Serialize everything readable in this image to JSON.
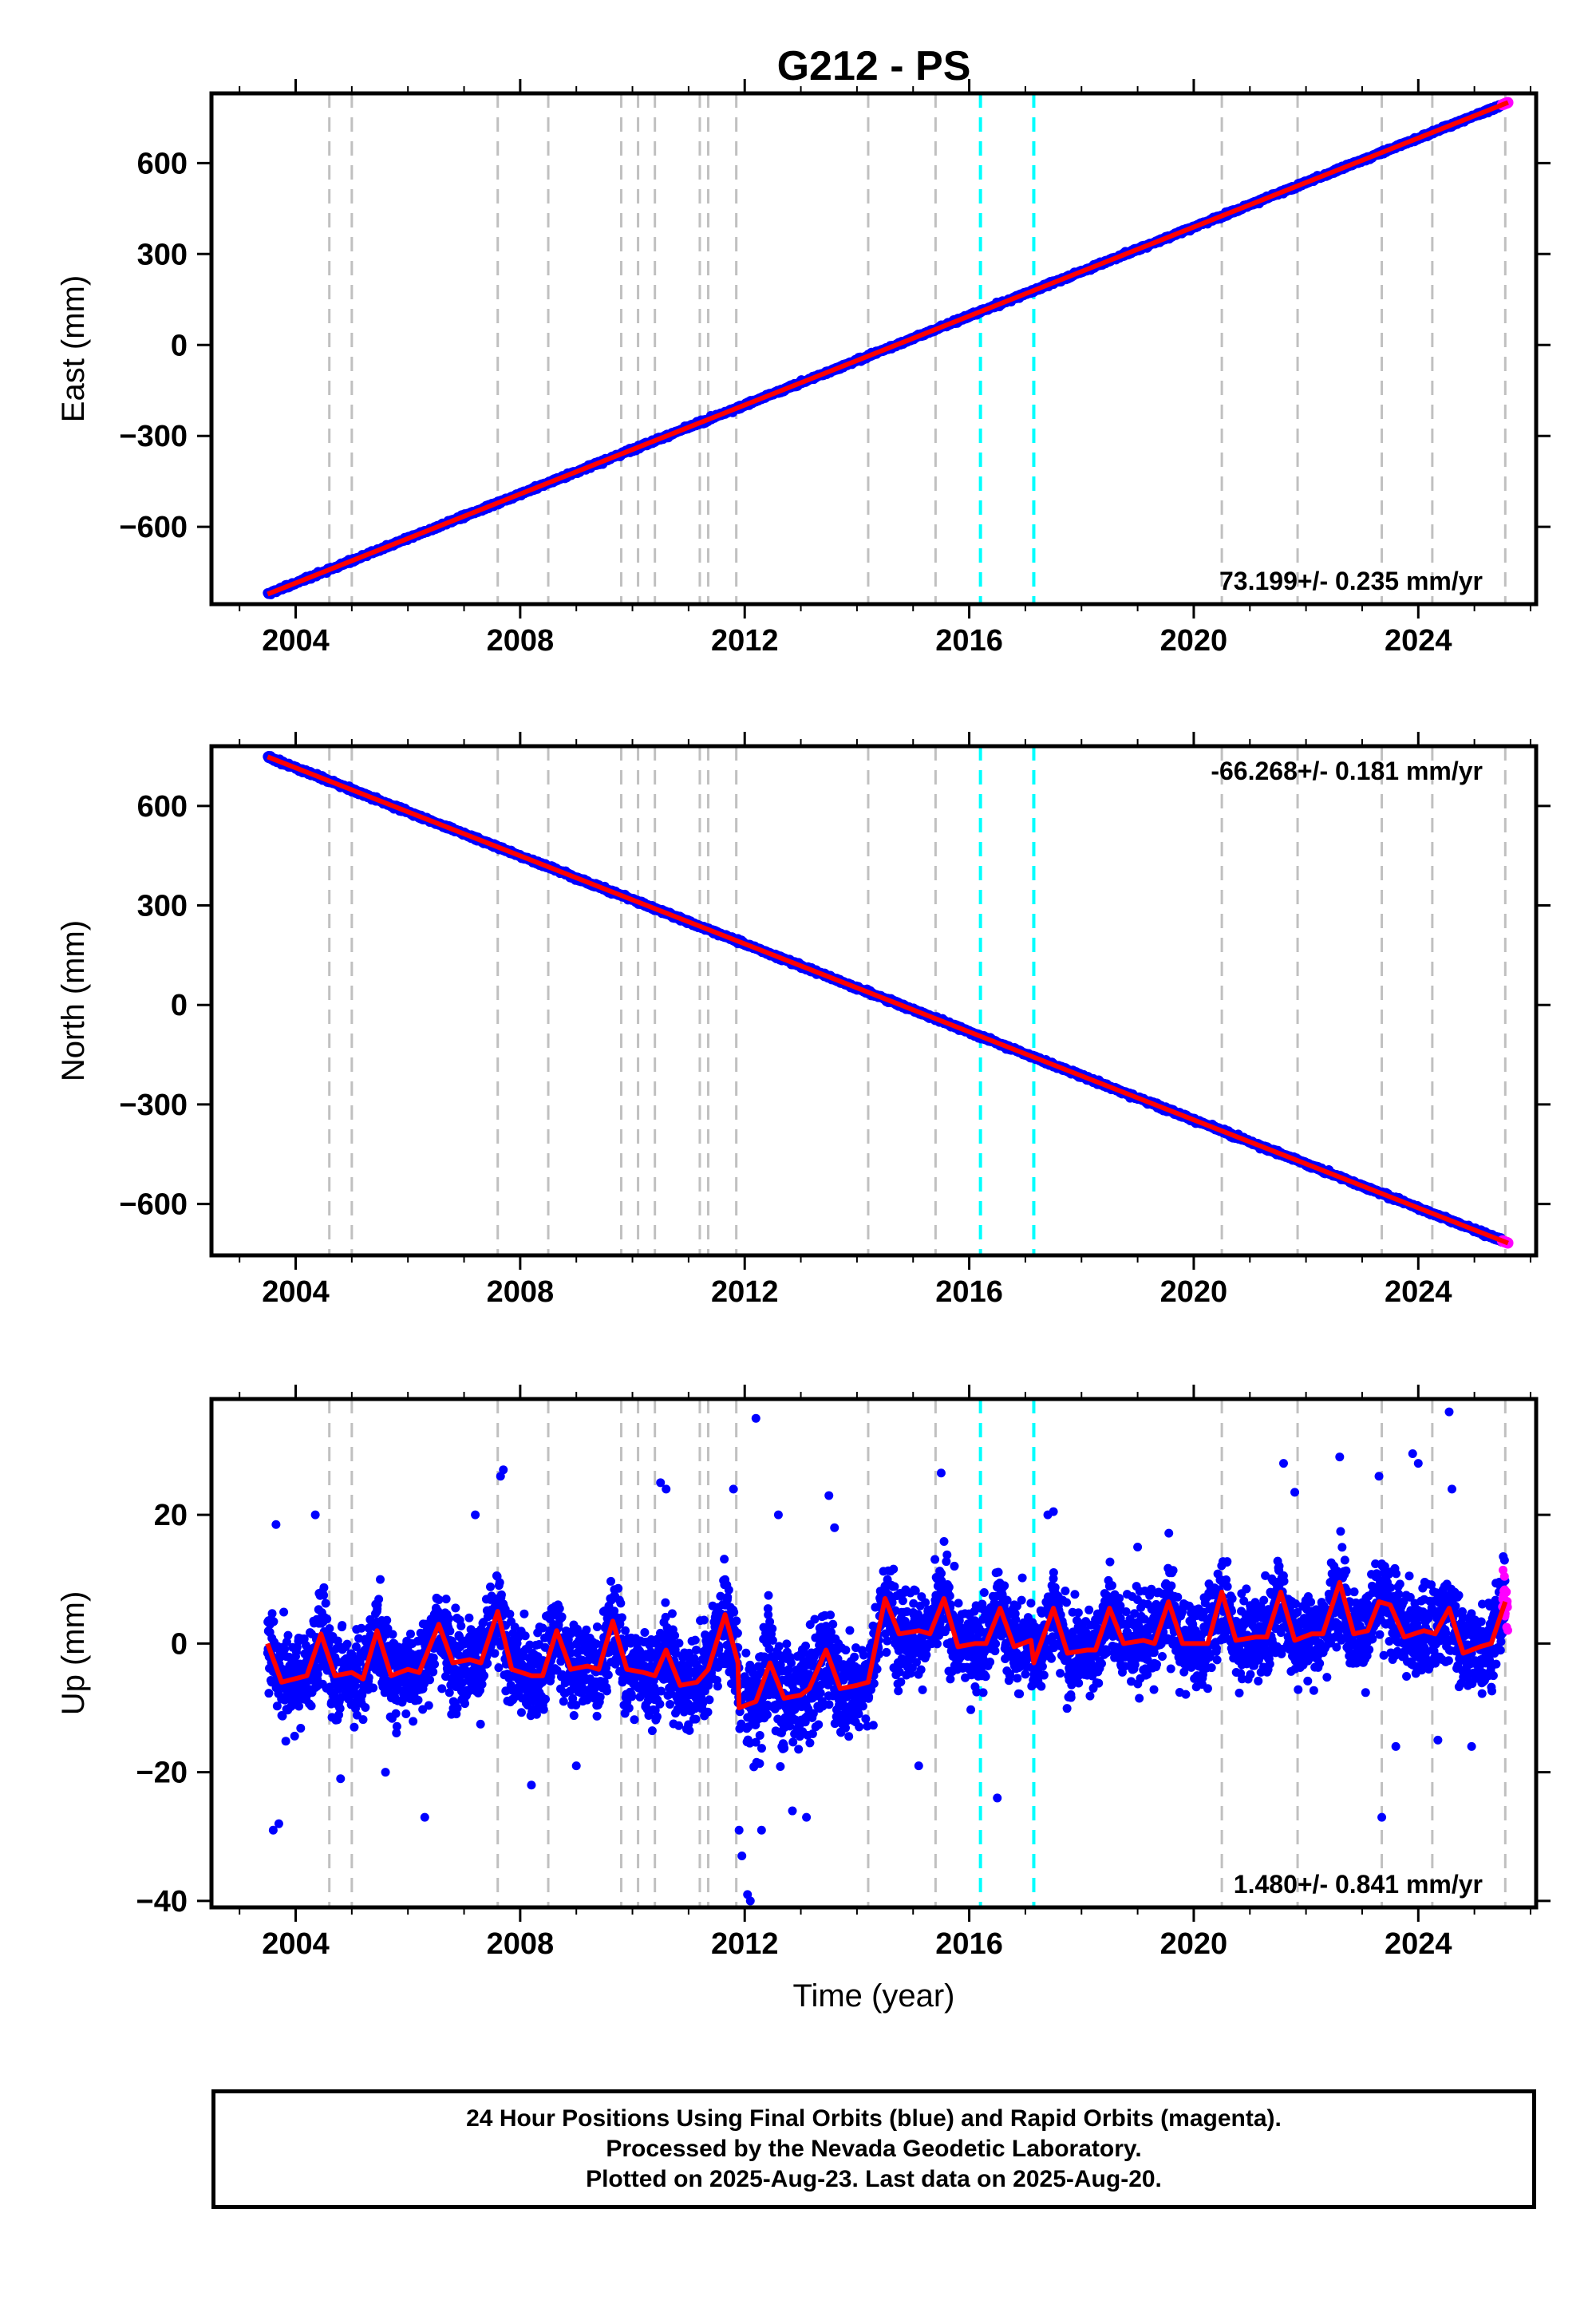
{
  "title": "G212 - PS",
  "colors": {
    "final_points": "#0000ff",
    "rapid_points": "#ff00ff",
    "model_line": "#ff0000",
    "event_gray": "#c0c0c0",
    "event_cyan": "#00ffff"
  },
  "x_axis": {
    "label": "Time (year)",
    "range": [
      2002.5,
      2026.1
    ],
    "ticks": [
      2004,
      2008,
      2012,
      2016,
      2020,
      2024
    ]
  },
  "event_lines": {
    "gray": [
      2004.6,
      2005.0,
      2007.6,
      2008.5,
      2009.8,
      2010.1,
      2010.4,
      2011.2,
      2011.35,
      2011.85,
      2014.2,
      2015.4,
      2020.5,
      2021.85,
      2023.35,
      2024.25,
      2025.55
    ],
    "cyan": [
      2016.2,
      2017.15
    ]
  },
  "chart_data": [
    {
      "type": "scatter",
      "panel": "east",
      "ylabel": "East (mm)",
      "ylim": [
        -855,
        830
      ],
      "yticks": [
        -600,
        -300,
        0,
        300,
        600
      ],
      "rate_label": "73.199+/- 0.235 mm/yr",
      "rate_position": "bottom-right",
      "start_year": 2003.5,
      "end_year": 2025.6,
      "start_value": -822,
      "end_value": 800,
      "noise_mm": 4,
      "seasonal_amplitude_mm": 0,
      "series": [
        {
          "values": [
            [
              2003.5,
              -822
            ],
            [
              2004.5,
              -749
            ],
            [
              2006,
              -639
            ],
            [
              2008,
              -493
            ],
            [
              2010,
              -347
            ],
            [
              2012,
              -200
            ],
            [
              2014,
              -54
            ],
            [
              2016,
              92
            ],
            [
              2018,
              239
            ],
            [
              2020,
              385
            ],
            [
              2022,
              532
            ],
            [
              2024,
              678
            ],
            [
              2025.6,
              800
            ]
          ]
        }
      ]
    },
    {
      "type": "scatter",
      "panel": "north",
      "ylabel": "North (mm)",
      "ylim": [
        -755,
        780
      ],
      "yticks": [
        -600,
        -300,
        0,
        300,
        600
      ],
      "rate_label": "-66.268+/- 0.181 mm/yr",
      "rate_position": "top-right",
      "start_year": 2003.5,
      "end_year": 2025.6,
      "start_value": 748,
      "end_value": -718,
      "noise_mm": 4,
      "seasonal_amplitude_mm": 0,
      "series": [
        {
          "values": [
            [
              2003.5,
              748
            ],
            [
              2004.5,
              682
            ],
            [
              2006,
              583
            ],
            [
              2008,
              450
            ],
            [
              2010,
              318
            ],
            [
              2012,
              185
            ],
            [
              2014,
              52
            ],
            [
              2016,
              -80
            ],
            [
              2018,
              -213
            ],
            [
              2020,
              -345
            ],
            [
              2022,
              -478
            ],
            [
              2024,
              -610
            ],
            [
              2025.6,
              -718
            ]
          ]
        }
      ]
    },
    {
      "type": "scatter",
      "panel": "up",
      "ylabel": "Up (mm)",
      "ylim": [
        -41,
        38
      ],
      "yticks": [
        -40,
        -20,
        0,
        20
      ],
      "rate_label": "1.480+/- 0.841 mm/yr",
      "rate_position": "bottom-right",
      "noise_mm": 5,
      "seasonal_amplitude_mm": 5,
      "model_knots": [
        [
          2003.5,
          0
        ],
        [
          2003.75,
          -6
        ],
        [
          2004.2,
          -5
        ],
        [
          2004.45,
          1.5
        ],
        [
          2004.7,
          -5
        ],
        [
          2005.0,
          -4.5
        ],
        [
          2005.2,
          -5.5
        ],
        [
          2005.45,
          2
        ],
        [
          2005.7,
          -5
        ],
        [
          2006.0,
          -4
        ],
        [
          2006.2,
          -4.5
        ],
        [
          2006.55,
          3
        ],
        [
          2006.8,
          -3
        ],
        [
          2007.1,
          -2.5
        ],
        [
          2007.3,
          -3
        ],
        [
          2007.6,
          5
        ],
        [
          2007.85,
          -4
        ],
        [
          2008.2,
          -5
        ],
        [
          2008.4,
          -5
        ],
        [
          2008.65,
          2
        ],
        [
          2008.9,
          -4
        ],
        [
          2009.2,
          -3.5
        ],
        [
          2009.4,
          -4
        ],
        [
          2009.65,
          3.5
        ],
        [
          2009.9,
          -4
        ],
        [
          2010.2,
          -4.5
        ],
        [
          2010.4,
          -5
        ],
        [
          2010.6,
          -1
        ],
        [
          2010.85,
          -6.5
        ],
        [
          2011.15,
          -6
        ],
        [
          2011.35,
          -4
        ],
        [
          2011.65,
          4.5
        ],
        [
          2011.88,
          -3
        ],
        [
          2011.9,
          -10
        ],
        [
          2012.2,
          -9
        ],
        [
          2012.45,
          -3
        ],
        [
          2012.7,
          -8.5
        ],
        [
          2013.0,
          -8
        ],
        [
          2013.15,
          -7
        ],
        [
          2013.45,
          -1
        ],
        [
          2013.7,
          -7
        ],
        [
          2014.0,
          -6.5
        ],
        [
          2014.2,
          -6
        ],
        [
          2014.5,
          7
        ],
        [
          2014.75,
          1.5
        ],
        [
          2015.1,
          2
        ],
        [
          2015.3,
          1.5
        ],
        [
          2015.55,
          7
        ],
        [
          2015.8,
          -0.5
        ],
        [
          2016.1,
          0
        ],
        [
          2016.3,
          0
        ],
        [
          2016.55,
          5.5
        ],
        [
          2016.8,
          -0.5
        ],
        [
          2017.1,
          0.5
        ],
        [
          2017.15,
          -3
        ],
        [
          2017.5,
          5.5
        ],
        [
          2017.75,
          -1.5
        ],
        [
          2018.1,
          -1
        ],
        [
          2018.25,
          -1
        ],
        [
          2018.5,
          5.5
        ],
        [
          2018.75,
          0
        ],
        [
          2019.1,
          0.5
        ],
        [
          2019.3,
          0
        ],
        [
          2019.55,
          6.5
        ],
        [
          2019.8,
          0
        ],
        [
          2020.1,
          0
        ],
        [
          2020.25,
          0
        ],
        [
          2020.5,
          8
        ],
        [
          2020.75,
          0.5
        ],
        [
          2021.1,
          1
        ],
        [
          2021.3,
          1
        ],
        [
          2021.55,
          8
        ],
        [
          2021.8,
          0.5
        ],
        [
          2022.1,
          1.5
        ],
        [
          2022.3,
          1.5
        ],
        [
          2022.6,
          9.5
        ],
        [
          2022.85,
          1.5
        ],
        [
          2023.1,
          2
        ],
        [
          2023.3,
          6.5
        ],
        [
          2023.5,
          6
        ],
        [
          2023.75,
          1
        ],
        [
          2024.1,
          2
        ],
        [
          2024.3,
          1.5
        ],
        [
          2024.55,
          5.5
        ],
        [
          2024.8,
          -1.5
        ],
        [
          2025.1,
          -0.5
        ],
        [
          2025.3,
          0
        ],
        [
          2025.55,
          6.5
        ]
      ],
      "outliers": [
        [
          2003.6,
          -29
        ],
        [
          2003.7,
          -28
        ],
        [
          2003.65,
          18.5
        ],
        [
          2004.35,
          20
        ],
        [
          2004.8,
          -21
        ],
        [
          2005.6,
          -20
        ],
        [
          2006.3,
          -27
        ],
        [
          2007.2,
          20
        ],
        [
          2007.65,
          26
        ],
        [
          2007.7,
          27
        ],
        [
          2008.2,
          -22
        ],
        [
          2009.0,
          -19
        ],
        [
          2010.5,
          25
        ],
        [
          2010.6,
          24
        ],
        [
          2011.8,
          24
        ],
        [
          2011.9,
          -29
        ],
        [
          2011.95,
          -33
        ],
        [
          2012.2,
          35
        ],
        [
          2012.05,
          -39
        ],
        [
          2012.1,
          -40
        ],
        [
          2012.3,
          -29
        ],
        [
          2012.6,
          20
        ],
        [
          2012.85,
          -26
        ],
        [
          2013.1,
          -27
        ],
        [
          2013.5,
          23
        ],
        [
          2013.6,
          18
        ],
        [
          2015.5,
          26.5
        ],
        [
          2015.1,
          -19
        ],
        [
          2016.5,
          -24
        ],
        [
          2017.4,
          20
        ],
        [
          2017.5,
          20.5
        ],
        [
          2019.0,
          15
        ],
        [
          2021.8,
          23.5
        ],
        [
          2021.6,
          28
        ],
        [
          2022.6,
          29
        ],
        [
          2023.3,
          26
        ],
        [
          2023.35,
          -27
        ],
        [
          2023.6,
          -16
        ],
        [
          2023.9,
          29.5
        ],
        [
          2024.0,
          28
        ],
        [
          2024.35,
          -15
        ],
        [
          2024.55,
          36
        ],
        [
          2024.6,
          24
        ],
        [
          2024.95,
          -16
        ]
      ],
      "series": [
        {
          "values": [
            [
              2003.5,
              0
            ],
            [
              2004.45,
              1.5
            ],
            [
              2007.6,
              5
            ],
            [
              2010.85,
              -6.5
            ],
            [
              2011.9,
              -10
            ],
            [
              2012.7,
              -8.5
            ],
            [
              2014.5,
              7
            ],
            [
              2017.15,
              -3
            ],
            [
              2020.5,
              8
            ],
            [
              2022.6,
              9.5
            ],
            [
              2024.8,
              -1.5
            ],
            [
              2025.55,
              6.5
            ]
          ]
        }
      ]
    }
  ],
  "footer": {
    "lines": [
      "24 Hour Positions Using Final Orbits (blue) and Rapid Orbits (magenta).",
      "Processed by the Nevada Geodetic Laboratory.",
      "Plotted on 2025-Aug-23. Last data on 2025-Aug-20."
    ]
  }
}
